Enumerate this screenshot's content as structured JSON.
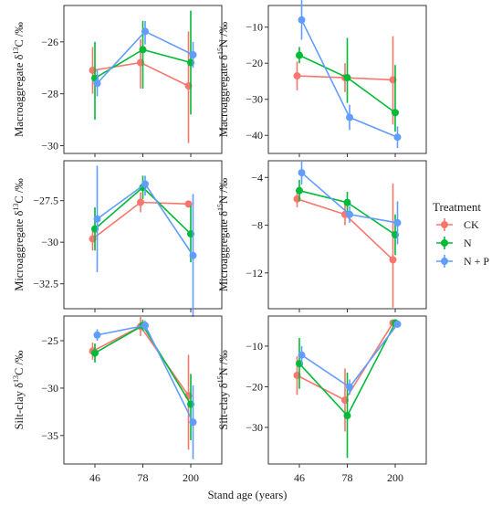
{
  "figure": {
    "x_label": "Stand age (years)",
    "legend_title": "Treatment"
  },
  "colors": {
    "CK": "#F8766D",
    "N": "#00BA38",
    "N + P": "#619CFF"
  },
  "chart_data": [
    {
      "type": "line",
      "panel": "macro-c",
      "ylabel_pre": "Macroaggregate δ",
      "ylabel_sup": "13",
      "ylabel_post": "C /‰",
      "categories": [
        "46",
        "78",
        "200"
      ],
      "ylim": [
        -30.3,
        -24.6
      ],
      "yticks": [
        -30,
        -28,
        -26
      ],
      "series": [
        {
          "name": "CK",
          "values": [
            -27.1,
            -26.8,
            -27.7
          ],
          "lower": [
            -28.0,
            -27.8,
            -29.9
          ],
          "upper": [
            -26.2,
            -25.9,
            -25.6
          ]
        },
        {
          "name": "N",
          "values": [
            -27.4,
            -26.3,
            -26.8
          ],
          "lower": [
            -29.0,
            -27.8,
            -28.8
          ],
          "upper": [
            -26.0,
            -25.2,
            -24.8
          ]
        },
        {
          "name": "N + P",
          "values": [
            -27.6,
            -25.6,
            -26.5
          ],
          "lower": [
            -28.1,
            -26.1,
            -27.0
          ],
          "upper": [
            -27.1,
            -25.2,
            -26.0
          ]
        }
      ]
    },
    {
      "type": "line",
      "panel": "macro-n",
      "ylabel_pre": "Macroaggregate δ",
      "ylabel_sup": "15",
      "ylabel_post": "N /‰",
      "categories": [
        "46",
        "78",
        "200"
      ],
      "ylim": [
        -45.0,
        -4.0
      ],
      "yticks": [
        -40,
        -30,
        -20,
        -10
      ],
      "series": [
        {
          "name": "CK",
          "values": [
            -23.5,
            -24.0,
            -24.6
          ],
          "lower": [
            -27.5,
            -28.0,
            -37.0
          ],
          "upper": [
            -19.5,
            -20.0,
            -12.5
          ]
        },
        {
          "name": "N",
          "values": [
            -17.8,
            -24.0,
            -33.7
          ],
          "lower": [
            -20.0,
            -31.0,
            -39.0
          ],
          "upper": [
            -15.5,
            -13.0,
            -20.5
          ]
        },
        {
          "name": "N + P",
          "values": [
            -8.0,
            -35.0,
            -40.5
          ],
          "lower": [
            -13.5,
            -38.5,
            -43.5
          ],
          "upper": [
            -2.5,
            -31.5,
            -37.5
          ]
        }
      ]
    },
    {
      "type": "line",
      "panel": "micro-c",
      "ylabel_pre": "Microaggregate δ",
      "ylabel_sup": "13",
      "ylabel_post": "C /‰",
      "categories": [
        "46",
        "78",
        "200"
      ],
      "ylim": [
        -34.0,
        -25.1
      ],
      "yticks": [
        -32.5,
        -30.0,
        -27.5
      ],
      "series": [
        {
          "name": "CK",
          "values": [
            -29.8,
            -27.6,
            -27.7
          ],
          "lower": [
            -30.5,
            -28.2,
            -27.7
          ],
          "upper": [
            -29.1,
            -27.0,
            -27.7
          ]
        },
        {
          "name": "N",
          "values": [
            -29.2,
            -26.7,
            -29.5
          ],
          "lower": [
            -30.5,
            -27.4,
            -31.2
          ],
          "upper": [
            -27.9,
            -26.0,
            -27.8
          ]
        },
        {
          "name": "N + P",
          "values": [
            -28.6,
            -26.5,
            -30.8
          ],
          "lower": [
            -31.8,
            -27.2,
            -34.5
          ],
          "upper": [
            -25.4,
            -26.0,
            -27.1
          ]
        }
      ]
    },
    {
      "type": "line",
      "panel": "micro-n",
      "ylabel_pre": "Microaggregate δ",
      "ylabel_sup": "15",
      "ylabel_post": "N /‰",
      "categories": [
        "46",
        "78",
        "200"
      ],
      "ylim": [
        -15.0,
        -2.6
      ],
      "yticks": [
        -12,
        -8,
        -4
      ],
      "series": [
        {
          "name": "CK",
          "values": [
            -5.8,
            -7.1,
            -10.9
          ],
          "lower": [
            -6.5,
            -8.0,
            -14.9
          ],
          "upper": [
            -5.1,
            -6.2,
            -4.5
          ]
        },
        {
          "name": "N",
          "values": [
            -5.1,
            -6.1,
            -8.8
          ],
          "lower": [
            -6.0,
            -7.0,
            -10.5
          ],
          "upper": [
            -4.2,
            -5.2,
            -7.1
          ]
        },
        {
          "name": "N + P",
          "values": [
            -3.6,
            -7.1,
            -7.8
          ],
          "lower": [
            -4.6,
            -7.8,
            -9.6
          ],
          "upper": [
            -2.6,
            -6.4,
            -6.0
          ]
        }
      ]
    },
    {
      "type": "line",
      "panel": "silt-c",
      "ylabel_pre": "Silt-clay δ",
      "ylabel_sup": "13",
      "ylabel_post": "C /‰",
      "categories": [
        "46",
        "78",
        "200"
      ],
      "ylim": [
        -38.0,
        -22.4
      ],
      "yticks": [
        -35,
        -30,
        -25
      ],
      "series": [
        {
          "name": "CK",
          "values": [
            -26.1,
            -23.5,
            -30.8
          ],
          "lower": [
            -27.0,
            -24.5,
            -36.5
          ],
          "upper": [
            -25.2,
            -22.5,
            -26.5
          ]
        },
        {
          "name": "N",
          "values": [
            -26.3,
            -23.4,
            -31.7
          ],
          "lower": [
            -27.3,
            -24.0,
            -35.5
          ],
          "upper": [
            -25.3,
            -22.8,
            -28.5
          ]
        },
        {
          "name": "N + P",
          "values": [
            -24.4,
            -23.4,
            -33.6
          ],
          "lower": [
            -25.0,
            -23.9,
            -37.5
          ],
          "upper": [
            -23.8,
            -22.9,
            -29.7
          ]
        }
      ]
    },
    {
      "type": "line",
      "panel": "silt-n",
      "ylabel_pre": "Silt-clay δ",
      "ylabel_sup": "15",
      "ylabel_post": "N /‰",
      "categories": [
        "46",
        "78",
        "200"
      ],
      "ylim": [
        -39.0,
        -2.6
      ],
      "yticks": [
        -30,
        -20,
        -10
      ],
      "series": [
        {
          "name": "CK",
          "values": [
            -17.2,
            -23.3,
            -4.3
          ],
          "lower": [
            -22.0,
            -31.0,
            -5.0
          ],
          "upper": [
            -12.5,
            -15.5,
            -3.6
          ]
        },
        {
          "name": "N",
          "values": [
            -14.3,
            -27.1,
            -4.3
          ],
          "lower": [
            -20.5,
            -37.5,
            -5.2
          ],
          "upper": [
            -8.0,
            -16.5,
            -3.4
          ]
        },
        {
          "name": "N + P",
          "values": [
            -12.2,
            -20.1,
            -4.6
          ],
          "lower": [
            -14.5,
            -22.0,
            -5.4
          ],
          "upper": [
            -10.0,
            -18.2,
            -3.8
          ]
        }
      ]
    }
  ]
}
